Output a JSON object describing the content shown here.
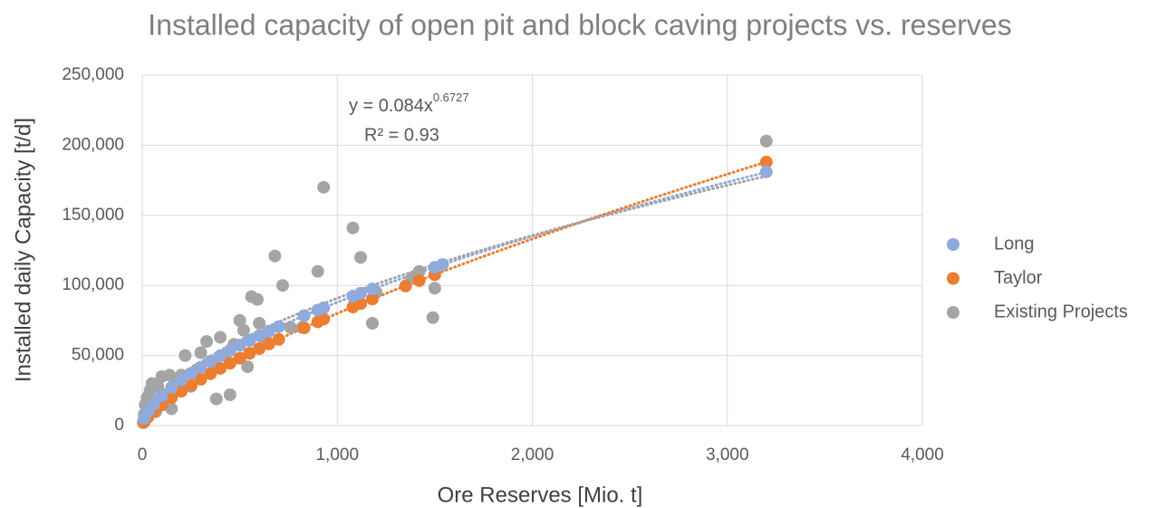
{
  "chart_data": {
    "type": "scatter",
    "title": "Installed capacity of open pit and block caving projects vs. reserves",
    "x_label": "Ore Reserves [Mio. t]",
    "y_label": "Installed daily Capacity [t/d]",
    "equation": {
      "base": "y = 0.084x",
      "exponent": "0.6727"
    },
    "r_squared": "R² = 0.93",
    "xlim": [
      0,
      4000
    ],
    "xticks": [
      0,
      {
        "value": 1000,
        "label": "1,000"
      },
      {
        "value": 2000,
        "label": "2,000"
      },
      {
        "value": 3000,
        "label": "3,000"
      },
      {
        "value": 4000,
        "label": "4,000"
      }
    ],
    "ylim": [
      0,
      250000
    ],
    "yticks": [
      0,
      {
        "value": 50000,
        "label": "50,000"
      },
      {
        "value": 100000,
        "label": "100,000"
      },
      {
        "value": 150000,
        "label": "150,000"
      },
      {
        "value": 200000,
        "label": "200,000"
      },
      {
        "value": 250000,
        "label": "250,000"
      }
    ],
    "grid": true,
    "legend": "right",
    "trendline": "power",
    "series": [
      {
        "name": "Long",
        "color": "#8faadc",
        "x": [
          10,
          30,
          60,
          100,
          150,
          200,
          250,
          300,
          350,
          400,
          450,
          500,
          550,
          600,
          650,
          700,
          830,
          900,
          930,
          1080,
          1120,
          1180,
          1500,
          1540,
          3200
        ],
        "values": [
          5100,
          10000,
          15400,
          21100,
          27200,
          32400,
          37300,
          41700,
          45900,
          49800,
          53700,
          57300,
          60700,
          64100,
          67400,
          70600,
          78400,
          82400,
          84000,
          92300,
          94400,
          97500,
          113000,
          114900,
          181000
        ]
      },
      {
        "name": "Taylor",
        "color": "#ed7d31",
        "x": [
          10,
          30,
          60,
          100,
          150,
          200,
          250,
          300,
          350,
          400,
          450,
          500,
          550,
          600,
          650,
          700,
          830,
          900,
          930,
          1080,
          1120,
          1180,
          1350,
          1420,
          1500,
          3200
        ],
        "values": [
          2700,
          6100,
          10100,
          14700,
          19900,
          24500,
          28900,
          33000,
          37000,
          40800,
          44500,
          48100,
          51600,
          54900,
          58300,
          61500,
          69700,
          74000,
          76000,
          84600,
          87000,
          90300,
          99600,
          103400,
          107600,
          188000
        ]
      },
      {
        "name": "Existing Projects",
        "color": "#a5a5a5",
        "x": [
          5,
          10,
          15,
          20,
          25,
          30,
          40,
          50,
          60,
          70,
          80,
          100,
          120,
          140,
          150,
          180,
          200,
          220,
          250,
          280,
          300,
          330,
          370,
          380,
          400,
          420,
          450,
          470,
          500,
          520,
          540,
          560,
          590,
          600,
          630,
          680,
          720,
          760,
          820,
          900,
          930,
          1080,
          1120,
          1180,
          1200,
          1380,
          1420,
          1490,
          1500,
          3200
        ],
        "values": [
          2000,
          8000,
          15000,
          5000,
          20000,
          12000,
          25000,
          30000,
          18000,
          10000,
          28000,
          35000,
          22000,
          36000,
          12000,
          30000,
          36000,
          50000,
          28000,
          40000,
          52000,
          60000,
          42000,
          19000,
          63000,
          50000,
          22000,
          58000,
          75000,
          68000,
          42000,
          92000,
          90000,
          73000,
          62000,
          121000,
          100000,
          70000,
          70000,
          110000,
          170000,
          141000,
          120000,
          73000,
          95000,
          105000,
          110000,
          77000,
          98000,
          203000
        ]
      }
    ]
  }
}
